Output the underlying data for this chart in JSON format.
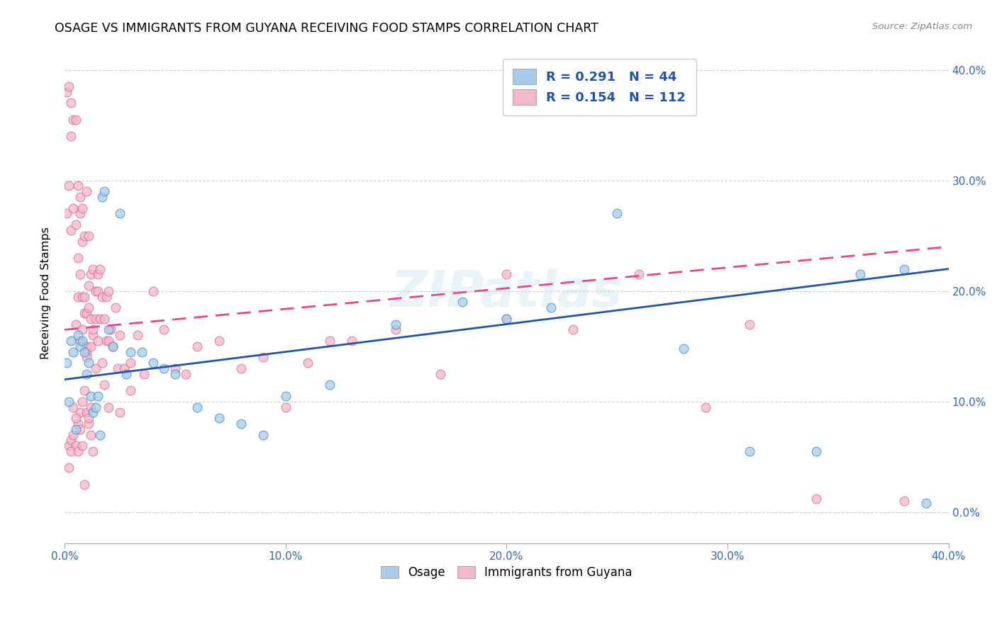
{
  "title": "OSAGE VS IMMIGRANTS FROM GUYANA RECEIVING FOOD STAMPS CORRELATION CHART",
  "source": "Source: ZipAtlas.com",
  "ylabel": "Receiving Food Stamps",
  "x_min": 0.0,
  "x_max": 0.4,
  "y_min": -0.028,
  "y_max": 0.425,
  "blue_color": "#a8cce8",
  "pink_color": "#f4b8cc",
  "blue_edge_color": "#4488cc",
  "pink_edge_color": "#dd6688",
  "blue_line_color": "#2255aa",
  "pink_line_color": "#ee4488",
  "watermark_text": "ZIPatlas",
  "legend_label_blue": "Osage",
  "legend_label_pink": "Immigrants from Guyana",
  "blue_legend_text": "R = 0.291   N = 44",
  "pink_legend_text": "R = 0.154   N = 112",
  "x_ticks": [
    0.0,
    0.1,
    0.2,
    0.3,
    0.4
  ],
  "x_tick_labels": [
    "0.0%",
    "10.0%",
    "20.0%",
    "30.0%",
    "40.0%"
  ],
  "y_ticks": [
    0.0,
    0.1,
    0.2,
    0.3,
    0.4
  ],
  "y_tick_labels": [
    "0.0%",
    "10.0%",
    "20.0%",
    "30.0%",
    "40.0%"
  ],
  "blue_scatter_x": [
    0.001,
    0.002,
    0.003,
    0.004,
    0.005,
    0.006,
    0.007,
    0.008,
    0.009,
    0.01,
    0.011,
    0.012,
    0.013,
    0.014,
    0.015,
    0.016,
    0.017,
    0.018,
    0.02,
    0.022,
    0.025,
    0.028,
    0.03,
    0.035,
    0.04,
    0.045,
    0.05,
    0.06,
    0.07,
    0.08,
    0.09,
    0.1,
    0.12,
    0.15,
    0.18,
    0.2,
    0.22,
    0.25,
    0.28,
    0.31,
    0.34,
    0.36,
    0.38,
    0.39
  ],
  "blue_scatter_y": [
    0.135,
    0.1,
    0.155,
    0.145,
    0.075,
    0.16,
    0.15,
    0.155,
    0.145,
    0.125,
    0.135,
    0.105,
    0.09,
    0.095,
    0.105,
    0.07,
    0.285,
    0.29,
    0.165,
    0.15,
    0.27,
    0.125,
    0.145,
    0.145,
    0.135,
    0.13,
    0.125,
    0.095,
    0.085,
    0.08,
    0.07,
    0.105,
    0.115,
    0.17,
    0.19,
    0.175,
    0.185,
    0.27,
    0.148,
    0.055,
    0.055,
    0.215,
    0.22,
    0.008
  ],
  "pink_scatter_x": [
    0.001,
    0.001,
    0.002,
    0.002,
    0.003,
    0.003,
    0.003,
    0.004,
    0.004,
    0.005,
    0.005,
    0.005,
    0.006,
    0.006,
    0.006,
    0.007,
    0.007,
    0.007,
    0.007,
    0.008,
    0.008,
    0.008,
    0.008,
    0.009,
    0.009,
    0.009,
    0.01,
    0.01,
    0.01,
    0.01,
    0.011,
    0.011,
    0.011,
    0.012,
    0.012,
    0.012,
    0.013,
    0.013,
    0.013,
    0.014,
    0.014,
    0.014,
    0.015,
    0.015,
    0.015,
    0.016,
    0.016,
    0.017,
    0.017,
    0.018,
    0.018,
    0.019,
    0.019,
    0.02,
    0.02,
    0.021,
    0.022,
    0.023,
    0.024,
    0.025,
    0.027,
    0.03,
    0.033,
    0.036,
    0.04,
    0.045,
    0.05,
    0.055,
    0.06,
    0.07,
    0.08,
    0.09,
    0.1,
    0.11,
    0.12,
    0.13,
    0.15,
    0.17,
    0.2,
    0.23,
    0.26,
    0.29,
    0.31,
    0.34,
    0.002,
    0.003,
    0.004,
    0.005,
    0.006,
    0.007,
    0.008,
    0.009,
    0.01,
    0.011,
    0.012,
    0.013,
    0.002,
    0.003,
    0.004,
    0.005,
    0.006,
    0.007,
    0.008,
    0.009,
    0.01,
    0.011,
    0.012,
    0.02,
    0.025,
    0.03,
    0.2,
    0.38
  ],
  "pink_scatter_y": [
    0.27,
    0.38,
    0.295,
    0.385,
    0.34,
    0.255,
    0.37,
    0.275,
    0.355,
    0.355,
    0.26,
    0.17,
    0.295,
    0.195,
    0.23,
    0.215,
    0.27,
    0.155,
    0.285,
    0.245,
    0.165,
    0.275,
    0.195,
    0.25,
    0.18,
    0.195,
    0.18,
    0.29,
    0.15,
    0.145,
    0.185,
    0.205,
    0.25,
    0.175,
    0.215,
    0.15,
    0.16,
    0.22,
    0.165,
    0.2,
    0.13,
    0.175,
    0.215,
    0.155,
    0.2,
    0.175,
    0.22,
    0.135,
    0.195,
    0.115,
    0.175,
    0.195,
    0.155,
    0.2,
    0.155,
    0.165,
    0.15,
    0.185,
    0.13,
    0.16,
    0.13,
    0.135,
    0.16,
    0.125,
    0.2,
    0.165,
    0.13,
    0.125,
    0.15,
    0.155,
    0.13,
    0.14,
    0.095,
    0.135,
    0.155,
    0.155,
    0.165,
    0.125,
    0.175,
    0.165,
    0.215,
    0.095,
    0.17,
    0.012,
    0.06,
    0.065,
    0.07,
    0.06,
    0.08,
    0.09,
    0.1,
    0.11,
    0.09,
    0.08,
    0.07,
    0.055,
    0.04,
    0.055,
    0.095,
    0.085,
    0.055,
    0.075,
    0.06,
    0.025,
    0.14,
    0.085,
    0.095,
    0.095,
    0.09,
    0.11,
    0.215,
    0.01
  ]
}
